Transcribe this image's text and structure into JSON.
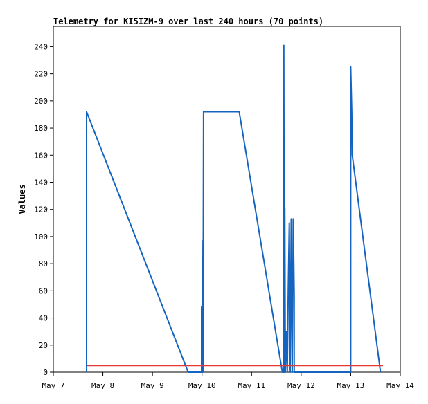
{
  "chart_data": {
    "type": "line",
    "title": "Telemetry for KI5IZM-9 over last 240 hours (70 points)",
    "xlabel": "",
    "ylabel": "Values",
    "x_ticks": [
      "May 7",
      "May 8",
      "May 9",
      "May 10",
      "May 11",
      "May 12",
      "May 13",
      "May 14"
    ],
    "x_range_days": [
      7,
      14
    ],
    "ylim": [
      0,
      255
    ],
    "y_ticks": [
      0,
      20,
      40,
      60,
      80,
      100,
      120,
      140,
      160,
      180,
      200,
      220,
      240
    ],
    "grid": false,
    "series": [
      {
        "color": "#1565c0",
        "points": [
          [
            7.67,
            0
          ],
          [
            7.67,
            192
          ],
          [
            9.72,
            0
          ],
          [
            9.72,
            0
          ],
          [
            9.99,
            0
          ],
          [
            9.99,
            48
          ],
          [
            10.0,
            0
          ],
          [
            10.01,
            0
          ],
          [
            10.02,
            97
          ],
          [
            10.02,
            0
          ],
          [
            10.03,
            192
          ],
          [
            10.75,
            192
          ],
          [
            11.62,
            0
          ],
          [
            11.64,
            0
          ],
          [
            11.65,
            241
          ],
          [
            11.66,
            0
          ],
          [
            11.67,
            121
          ],
          [
            11.68,
            0
          ],
          [
            11.7,
            30
          ],
          [
            11.72,
            0
          ],
          [
            11.74,
            60
          ],
          [
            11.76,
            110
          ],
          [
            11.78,
            0
          ],
          [
            11.8,
            113
          ],
          [
            11.82,
            0
          ],
          [
            11.84,
            113
          ],
          [
            11.86,
            56
          ],
          [
            11.86,
            0
          ],
          [
            13.0,
            0
          ],
          [
            13.0,
            225
          ],
          [
            13.02,
            192
          ],
          [
            13.03,
            160
          ],
          [
            13.6,
            0
          ]
        ]
      },
      {
        "color": "#e53935",
        "points": [
          [
            7.67,
            5
          ],
          [
            13.65,
            5
          ]
        ]
      }
    ]
  }
}
